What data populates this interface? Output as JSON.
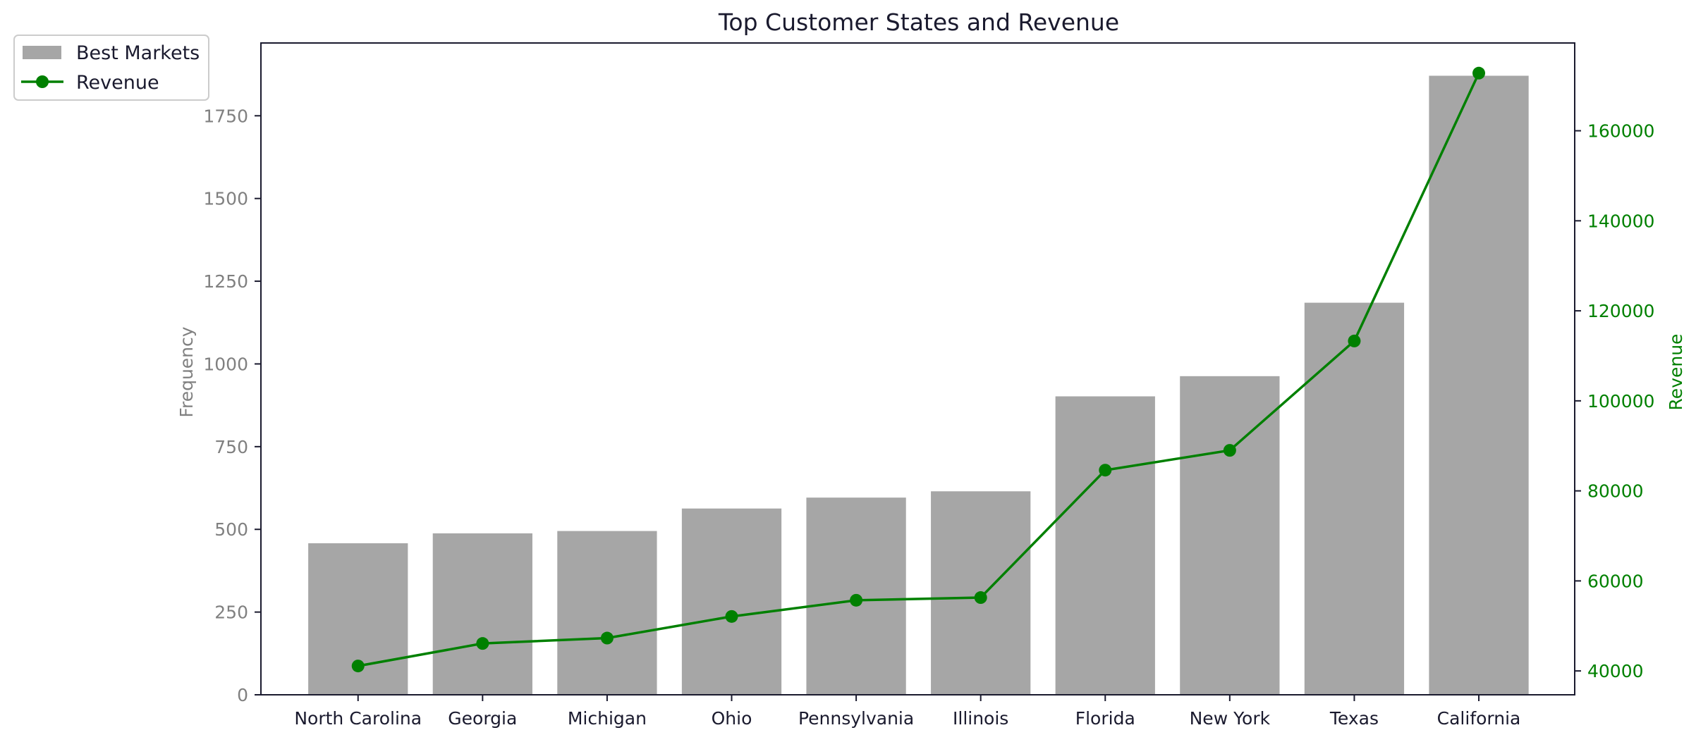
{
  "chart_data": {
    "type": "bar",
    "title": "Top Customer States and Revenue",
    "categories": [
      "North Carolina",
      "Georgia",
      "Michigan",
      "Ohio",
      "Pennsylvania",
      "Illinois",
      "Florida",
      "New York",
      "Texas",
      "California"
    ],
    "series": [
      {
        "name": "Best Markets",
        "type": "bar",
        "axis": "left",
        "values": [
          458,
          488,
          495,
          563,
          596,
          615,
          902,
          963,
          1185,
          1871
        ]
      },
      {
        "name": "Revenue",
        "type": "line",
        "axis": "right",
        "values": [
          41100,
          46100,
          47300,
          52100,
          55700,
          56300,
          84600,
          89000,
          113300,
          172800
        ]
      }
    ],
    "left_axis": {
      "label": "Frequency",
      "ylim": [
        0,
        1970
      ],
      "ticks": [
        0,
        250,
        500,
        750,
        1000,
        1250,
        1500,
        1750
      ]
    },
    "right_axis": {
      "label": "Revenue",
      "ylim": [
        34700,
        179500
      ],
      "ticks": [
        40000,
        60000,
        80000,
        100000,
        120000,
        140000,
        160000
      ]
    },
    "legend": {
      "placement": "top-left",
      "entries": [
        "Best Markets",
        "Revenue"
      ]
    },
    "colors": {
      "bar": "#a6a6a6",
      "line": "#008000",
      "left_axis_text": "#808080",
      "frame": "#1a1a2e"
    },
    "grid": false
  }
}
